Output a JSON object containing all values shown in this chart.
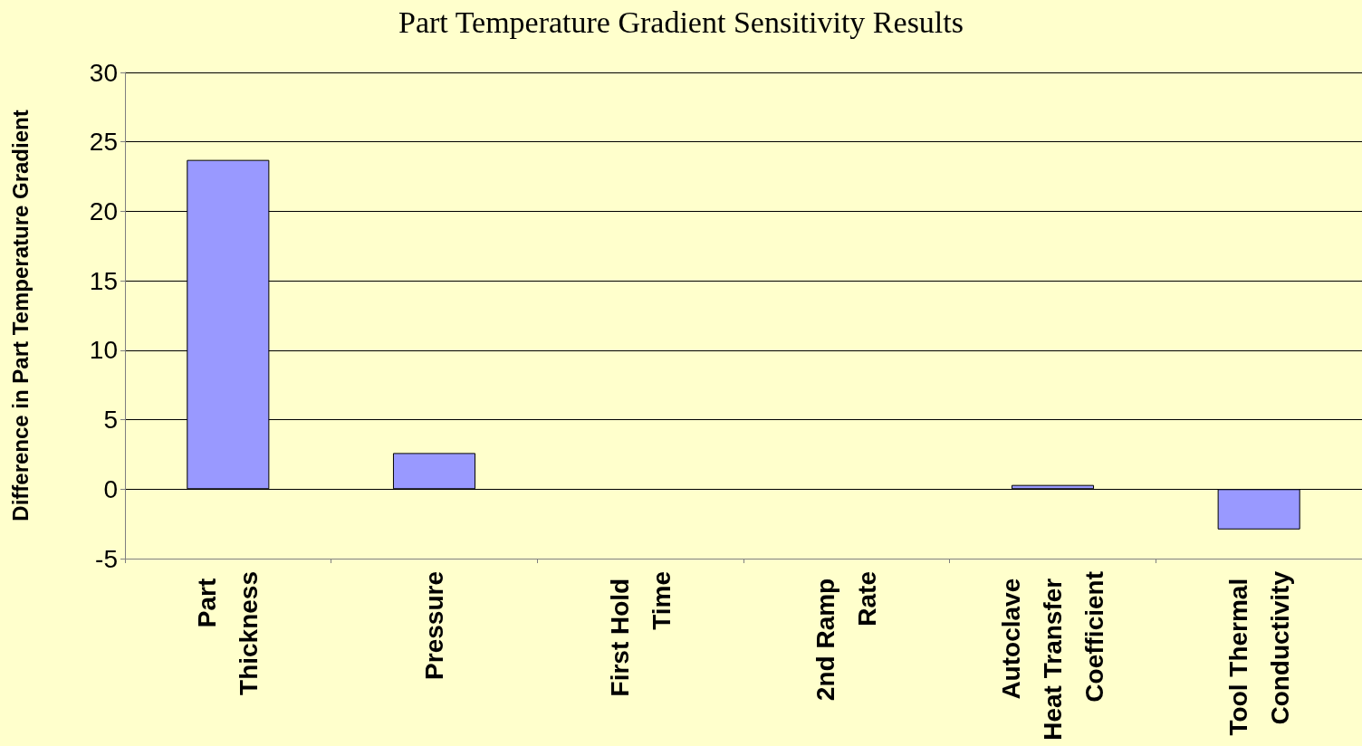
{
  "chart_data": {
    "type": "bar",
    "title": "Part Temperature Gradient Sensitivity Results",
    "ylabel": "Difference in Part Temperature Gradient",
    "categories": [
      "Part Thickness",
      "Pressure",
      "First Hold Time",
      "2nd Ramp Rate",
      "Autoclave Heat Transfer Coefficient",
      "Tool Thermal Conductivity"
    ],
    "values": [
      23.7,
      2.6,
      0,
      0,
      0.3,
      -2.9
    ],
    "color": "#9999ff",
    "ylim": [
      -5,
      30
    ],
    "yticks": [
      -5,
      0,
      5,
      10,
      15,
      20,
      25,
      30
    ],
    "grid": "y"
  }
}
